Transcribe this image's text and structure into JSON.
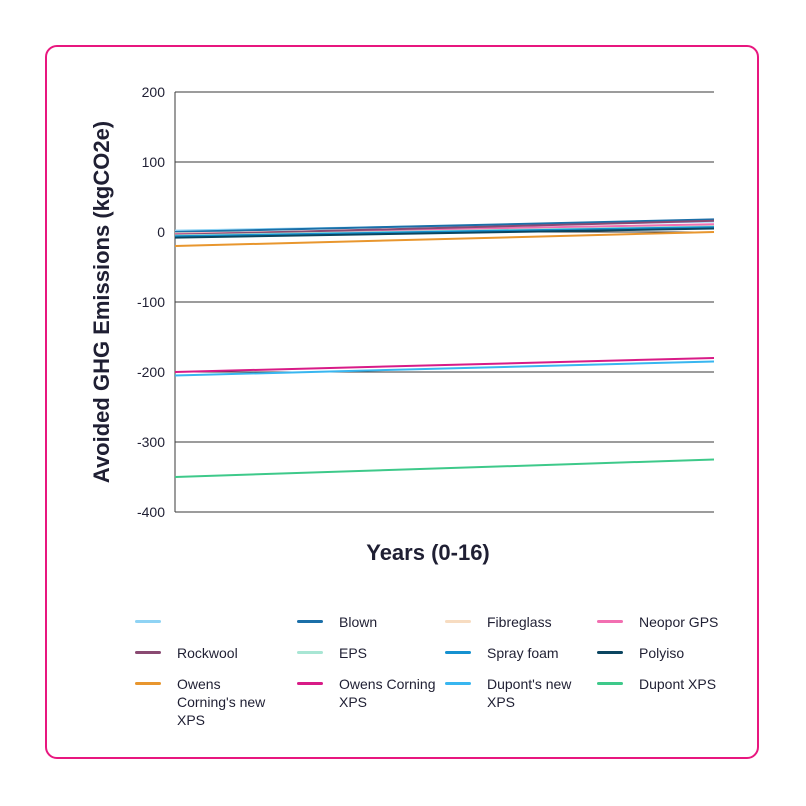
{
  "chart_data": {
    "type": "line",
    "title": "",
    "xlabel": "Years (0-16)",
    "ylabel": "Avoided GHG Emissions (kgCO2e)",
    "x": [
      0,
      16
    ],
    "ylim": [
      -400,
      200
    ],
    "yticks": [
      200,
      100,
      0,
      -100,
      -200,
      -300,
      -400
    ],
    "ytick_labels": [
      "200",
      "100",
      "0",
      "-100",
      "-200",
      "-300",
      "-400"
    ],
    "grid": true,
    "legend_position": "bottom",
    "series": [
      {
        "name": "",
        "color": "#8fd3f4",
        "values": [
          2,
          15
        ]
      },
      {
        "name": "Blown",
        "color": "#1b6fa8",
        "values": [
          0,
          18
        ]
      },
      {
        "name": "Fibreglass",
        "color": "#f7dcc1",
        "values": [
          -2,
          9
        ]
      },
      {
        "name": "Neopor GPS",
        "color": "#f26fb1",
        "values": [
          -3,
          11
        ]
      },
      {
        "name": "Rockwool",
        "color": "#8a4a72",
        "values": [
          -4,
          16
        ]
      },
      {
        "name": "EPS",
        "color": "#a8e6d4",
        "values": [
          -5,
          8
        ]
      },
      {
        "name": "Spray foam",
        "color": "#1591d0",
        "values": [
          -6,
          7
        ]
      },
      {
        "name": "Polyiso",
        "color": "#0b4560",
        "values": [
          -8,
          5
        ]
      },
      {
        "name": "Owens Corning's new XPS",
        "color": "#e8962e",
        "values": [
          -20,
          0
        ]
      },
      {
        "name": "Owens Corning XPS",
        "color": "#d81b87",
        "values": [
          -200,
          -180
        ]
      },
      {
        "name": "Dupont's new XPS",
        "color": "#38b6f0",
        "values": [
          -205,
          -185
        ]
      },
      {
        "name": "Dupont XPS",
        "color": "#3ec98a",
        "values": [
          -350,
          -325
        ]
      }
    ]
  }
}
